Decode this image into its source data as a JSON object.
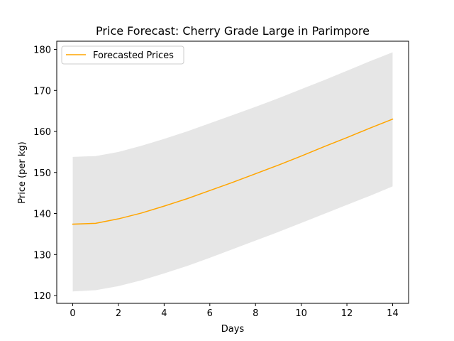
{
  "chart_data": {
    "type": "line",
    "title": "Price Forecast: Cherry Grade Large in Parimpore",
    "xlabel": "Days",
    "ylabel": "Price (per kg)",
    "xlim": [
      -0.7,
      14.7
    ],
    "ylim": [
      118.1,
      182.0
    ],
    "xticks": [
      0,
      2,
      4,
      6,
      8,
      10,
      12,
      14
    ],
    "yticks": [
      120,
      130,
      140,
      150,
      160,
      170,
      180
    ],
    "grid": false,
    "legend": {
      "position": "top-left",
      "entries": [
        "Forecasted Prices"
      ]
    },
    "series": [
      {
        "name": "Forecasted Prices",
        "color": "#ffa500",
        "x": [
          0,
          1,
          2,
          3,
          4,
          5,
          6,
          7,
          8,
          9,
          10,
          11,
          12,
          13,
          14
        ],
        "y": [
          137.4,
          137.6,
          138.7,
          140.1,
          141.8,
          143.6,
          145.6,
          147.6,
          149.7,
          151.8,
          154.0,
          156.3,
          158.5,
          160.8,
          163.0
        ]
      }
    ],
    "confidence_band": {
      "color": "#e6e6e6",
      "x": [
        0,
        1,
        2,
        3,
        4,
        5,
        6,
        7,
        8,
        9,
        10,
        11,
        12,
        13,
        14
      ],
      "lower": [
        121.0,
        121.3,
        122.3,
        123.7,
        125.4,
        127.2,
        129.2,
        131.3,
        133.4,
        135.5,
        137.7,
        139.9,
        142.1,
        144.3,
        146.6
      ],
      "upper": [
        153.8,
        154.0,
        155.0,
        156.5,
        158.2,
        160.0,
        162.0,
        164.0,
        166.0,
        168.1,
        170.3,
        172.5,
        174.8,
        177.1,
        179.3
      ]
    }
  }
}
